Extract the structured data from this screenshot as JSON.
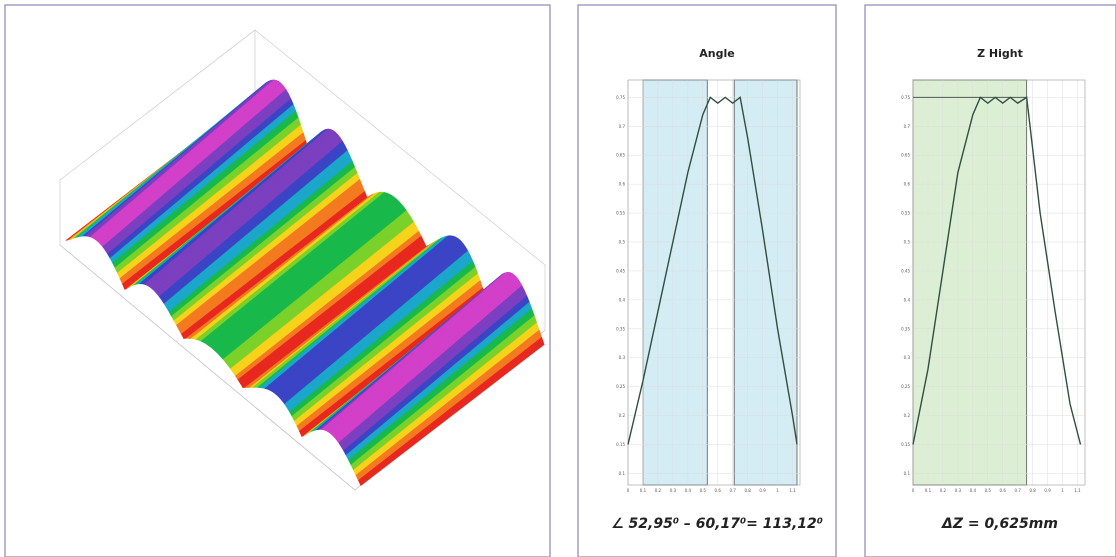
{
  "chart_data": [
    {
      "type": "line",
      "title": "Angle",
      "caption": "∠ 52,95⁰ – 60,17⁰= 113,12⁰",
      "x": [
        0,
        0.1,
        0.2,
        0.3,
        0.4,
        0.5,
        0.55,
        0.6,
        0.65,
        0.7,
        0.75,
        0.8,
        0.9,
        1.0,
        1.1,
        1.13
      ],
      "series": [
        {
          "color": "#2f4f3f",
          "values": [
            0.15,
            0.26,
            0.38,
            0.5,
            0.62,
            0.72,
            0.75,
            0.74,
            0.75,
            0.74,
            0.75,
            0.68,
            0.52,
            0.35,
            0.2,
            0.15
          ]
        }
      ],
      "xlim": [
        0,
        1.15
      ],
      "ylim": [
        0.08,
        0.78
      ],
      "xticks": [
        0,
        0.1,
        0.2,
        0.3,
        0.4,
        0.5,
        0.6,
        0.7,
        0.8,
        0.9,
        1,
        1.1
      ],
      "yticks": [
        0.1,
        0.15,
        0.2,
        0.25,
        0.3,
        0.35,
        0.4,
        0.45,
        0.5,
        0.55,
        0.6,
        0.65,
        0.7,
        0.75
      ],
      "grid": true,
      "regions": [
        {
          "from": 0.1,
          "to": 0.53,
          "color": "#d4ecf4"
        },
        {
          "from": 0.71,
          "to": 1.13,
          "color": "#d4ecf4"
        }
      ]
    },
    {
      "type": "line",
      "title": "Z Hight",
      "caption": "ΔZ = 0,625mm",
      "x": [
        0,
        0.1,
        0.2,
        0.3,
        0.4,
        0.45,
        0.5,
        0.55,
        0.6,
        0.65,
        0.7,
        0.76,
        0.85,
        0.95,
        1.05,
        1.12
      ],
      "series": [
        {
          "color": "#2f4f3f",
          "values": [
            0.15,
            0.28,
            0.45,
            0.62,
            0.72,
            0.75,
            0.74,
            0.75,
            0.74,
            0.75,
            0.74,
            0.75,
            0.55,
            0.38,
            0.22,
            0.15
          ]
        }
      ],
      "xlim": [
        0,
        1.15
      ],
      "ylim": [
        0.08,
        0.78
      ],
      "xticks": [
        0,
        0.1,
        0.2,
        0.3,
        0.4,
        0.5,
        0.6,
        0.7,
        0.8,
        0.9,
        1,
        1.1
      ],
      "yticks": [
        0.1,
        0.15,
        0.2,
        0.25,
        0.3,
        0.35,
        0.4,
        0.45,
        0.5,
        0.55,
        0.6,
        0.65,
        0.7,
        0.75
      ],
      "grid": true,
      "regions": [
        {
          "from": 0,
          "to": 0.76,
          "color": "#dcefd4"
        }
      ],
      "reference_line": 0.75
    }
  ]
}
